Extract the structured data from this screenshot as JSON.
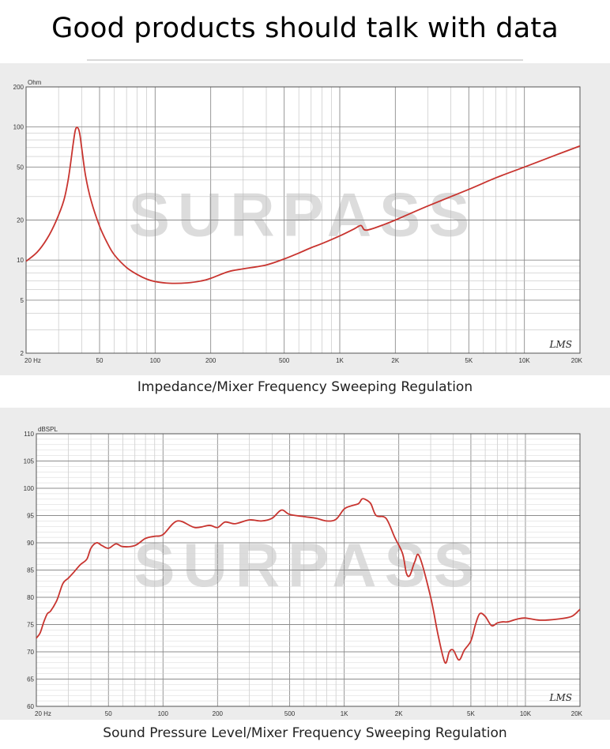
{
  "headline": "Good products should talk with data",
  "colors": {
    "curve": "#c8342f",
    "grid": "#a8a8a8",
    "panel_bg": "#ececec"
  },
  "watermark": "SURPASS",
  "chart_data": [
    {
      "type": "line",
      "title": "",
      "caption": "Impedance/Mixer Frequency Sweeping Regulation",
      "ylabel": "Ohm",
      "xscale": "log",
      "yscale": "log",
      "xlim": [
        20,
        20000
      ],
      "ylim": [
        2,
        200
      ],
      "grid": true,
      "x_ticks": [
        {
          "v": 20,
          "label": "20  Hz"
        },
        {
          "v": 50,
          "label": "50"
        },
        {
          "v": 100,
          "label": "100"
        },
        {
          "v": 200,
          "label": "200"
        },
        {
          "v": 500,
          "label": "500"
        },
        {
          "v": 1000,
          "label": "1K"
        },
        {
          "v": 2000,
          "label": "2K"
        },
        {
          "v": 5000,
          "label": "5K"
        },
        {
          "v": 10000,
          "label": "10K"
        },
        {
          "v": 20000,
          "label": "20K"
        }
      ],
      "y_ticks": [
        {
          "v": 2,
          "label": "2"
        },
        {
          "v": 5,
          "label": "5"
        },
        {
          "v": 10,
          "label": "10"
        },
        {
          "v": 20,
          "label": "20"
        },
        {
          "v": 50,
          "label": "50"
        },
        {
          "v": 100,
          "label": "100"
        },
        {
          "v": 200,
          "label": "200"
        }
      ],
      "brand_mark": "LMS",
      "series": [
        {
          "x": [
            20,
            23,
            26,
            29,
            32,
            34,
            36,
            37,
            38,
            39,
            40,
            42,
            45,
            50,
            55,
            60,
            70,
            80,
            90,
            100,
            120,
            150,
            180,
            200,
            250,
            300,
            400,
            500,
            600,
            700,
            800,
            1000,
            1200,
            1300,
            1350,
            1400,
            1500,
            1700,
            2000,
            3000,
            5000,
            7000,
            10000,
            15000,
            20000
          ],
          "y": [
            9.8,
            11.5,
            14.5,
            19.5,
            28,
            42,
            75,
            95,
            99,
            90,
            70,
            43,
            28,
            18,
            13.5,
            11,
            8.8,
            7.8,
            7.2,
            6.9,
            6.7,
            6.75,
            7.0,
            7.3,
            8.2,
            8.6,
            9.2,
            10.2,
            11.3,
            12.4,
            13.3,
            15.2,
            17.2,
            18.2,
            17.0,
            16.8,
            17.2,
            18.3,
            20,
            25.5,
            34,
            41.5,
            50,
            62,
            72
          ]
        }
      ]
    },
    {
      "type": "line",
      "title": "",
      "caption": "Sound Pressure Level/Mixer Frequency Sweeping Regulation",
      "ylabel": "dBSPL",
      "xscale": "log",
      "xlim": [
        20,
        20000
      ],
      "ylim": [
        60,
        110
      ],
      "grid": true,
      "x_ticks": [
        {
          "v": 20,
          "label": "20  Hz"
        },
        {
          "v": 50,
          "label": "50"
        },
        {
          "v": 100,
          "label": "100"
        },
        {
          "v": 200,
          "label": "200"
        },
        {
          "v": 500,
          "label": "500"
        },
        {
          "v": 1000,
          "label": "1K"
        },
        {
          "v": 2000,
          "label": "2K"
        },
        {
          "v": 5000,
          "label": "5K"
        },
        {
          "v": 10000,
          "label": "10K"
        },
        {
          "v": 20000,
          "label": "20K"
        }
      ],
      "y_ticks": [
        {
          "v": 60,
          "label": "60"
        },
        {
          "v": 65,
          "label": "65"
        },
        {
          "v": 70,
          "label": "70"
        },
        {
          "v": 75,
          "label": "75"
        },
        {
          "v": 80,
          "label": "80"
        },
        {
          "v": 85,
          "label": "85"
        },
        {
          "v": 90,
          "label": "90"
        },
        {
          "v": 95,
          "label": "95"
        },
        {
          "v": 100,
          "label": "100"
        },
        {
          "v": 105,
          "label": "105"
        },
        {
          "v": 110,
          "label": "110"
        }
      ],
      "brand_mark": "LMS",
      "series": [
        {
          "x": [
            20,
            21,
            22,
            23,
            24,
            26,
            28,
            30,
            32,
            35,
            38,
            40,
            43,
            46,
            50,
            55,
            60,
            70,
            80,
            90,
            100,
            120,
            150,
            180,
            200,
            220,
            250,
            300,
            350,
            400,
            450,
            500,
            600,
            700,
            800,
            900,
            1000,
            1100,
            1200,
            1250,
            1300,
            1400,
            1500,
            1700,
            1900,
            2100,
            2200,
            2300,
            2450,
            2600,
            3000,
            3300,
            3600,
            3800,
            4000,
            4300,
            4600,
            5000,
            5300,
            5600,
            6000,
            6500,
            7000,
            7500,
            8000,
            9000,
            10000,
            12000,
            15000,
            18000,
            20000
          ],
          "y": [
            72.5,
            73.5,
            75.5,
            77,
            77.5,
            79.5,
            82.5,
            83.5,
            84.5,
            86,
            87,
            89,
            90,
            89.5,
            89,
            89.8,
            89.3,
            89.5,
            90.8,
            91.2,
            91.5,
            94,
            92.8,
            93.2,
            92.8,
            93.8,
            93.5,
            94.2,
            94,
            94.5,
            96,
            95.2,
            94.8,
            94.5,
            94,
            94.3,
            96.2,
            96.8,
            97.2,
            98,
            98,
            97.2,
            95,
            94.5,
            91,
            88,
            84.5,
            84,
            86.5,
            87.5,
            80,
            73,
            68,
            70,
            70.3,
            68.5,
            70.3,
            72,
            75,
            77,
            76.5,
            74.8,
            75.3,
            75.5,
            75.5,
            76,
            76.2,
            75.8,
            76,
            76.5,
            77.8
          ]
        }
      ]
    }
  ]
}
